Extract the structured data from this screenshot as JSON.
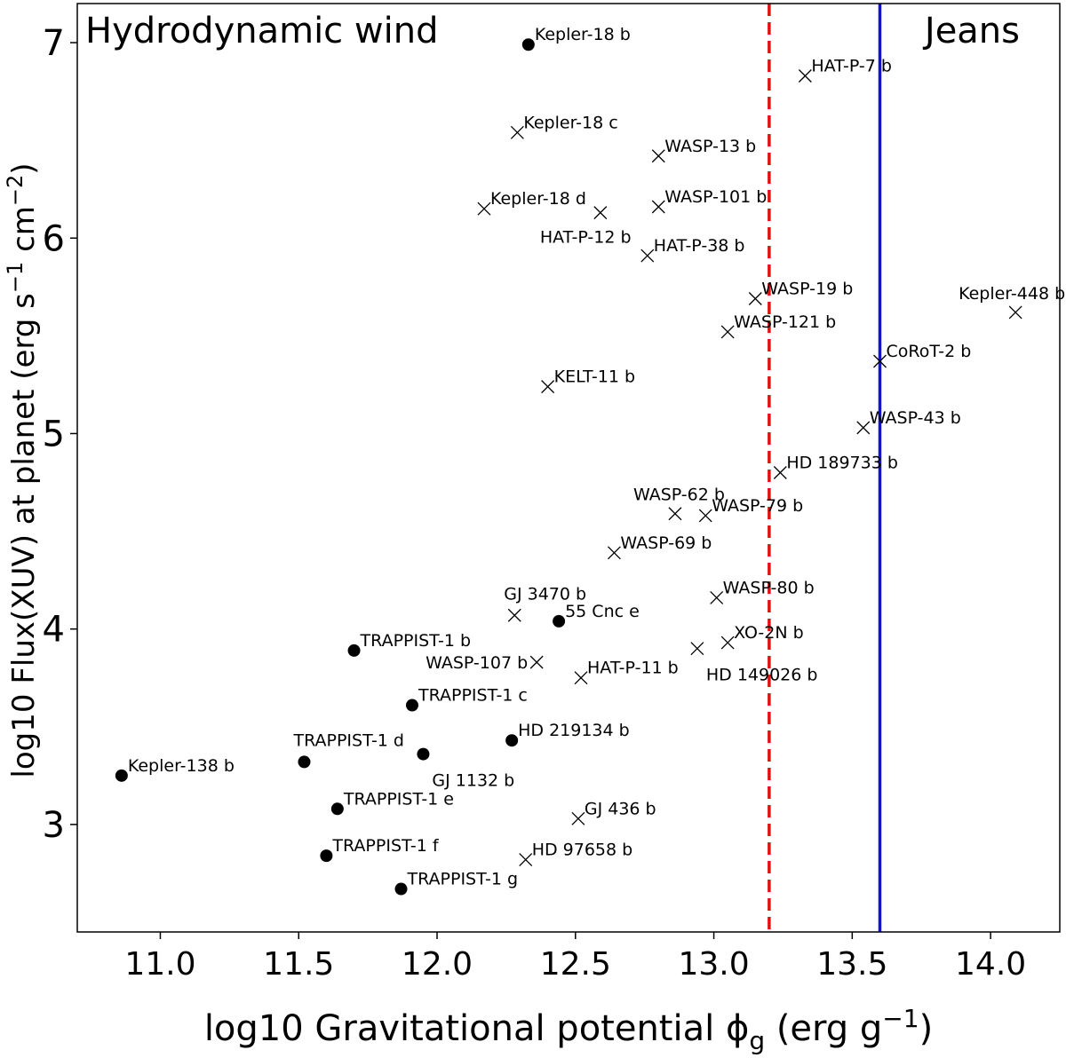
{
  "chart_data": {
    "type": "scatter",
    "xlabel": "log10 Gravitational potential ϕ",
    "xlabel_sub": "g",
    "xlabel_unit": " (erg g",
    "xlabel_sup": "−1",
    "xlabel_close": ")",
    "ylabel_main": "log10 Flux(XUV) at planet (erg s",
    "ylabel_sup1": "−1",
    "ylabel_mid": " cm",
    "ylabel_sup2": "−2",
    "ylabel_close": ")",
    "xlim": [
      10.7,
      14.25
    ],
    "ylim": [
      2.45,
      7.2
    ],
    "xticks": [
      "11.0",
      "11.5",
      "12.0",
      "12.5",
      "13.0",
      "13.5",
      "14.0"
    ],
    "yticks": [
      "3",
      "4",
      "5",
      "6",
      "7"
    ],
    "grid": false,
    "regions": {
      "left": "Hydrodynamic wind",
      "right": "Jeans"
    },
    "lines": [
      {
        "x": 13.2,
        "style": "dashed",
        "color": "#e01010"
      },
      {
        "x": 13.6,
        "style": "solid",
        "color": "#1010e0"
      }
    ],
    "points": [
      {
        "name": "Kepler-18 b",
        "x": 12.33,
        "y": 6.99,
        "marker": "dot",
        "label_pos": "right"
      },
      {
        "name": "HAT-P-7 b",
        "x": 13.33,
        "y": 6.83,
        "marker": "cross",
        "label_pos": "right"
      },
      {
        "name": "Kepler-18 c",
        "x": 12.29,
        "y": 6.54,
        "marker": "cross",
        "label_pos": "right"
      },
      {
        "name": "WASP-13 b",
        "x": 12.8,
        "y": 6.42,
        "marker": "cross",
        "label_pos": "right"
      },
      {
        "name": "Kepler-18 d",
        "x": 12.17,
        "y": 6.15,
        "marker": "cross",
        "label_pos": "right"
      },
      {
        "name": "WASP-101 b",
        "x": 12.8,
        "y": 6.16,
        "marker": "cross",
        "label_pos": "right"
      },
      {
        "name": "HAT-P-12 b",
        "x": 12.59,
        "y": 6.13,
        "marker": "cross",
        "label_pos": "below-left"
      },
      {
        "name": "HAT-P-38 b",
        "x": 12.76,
        "y": 5.91,
        "marker": "cross",
        "label_pos": "right"
      },
      {
        "name": "WASP-19 b",
        "x": 13.15,
        "y": 5.69,
        "marker": "cross",
        "label_pos": "right"
      },
      {
        "name": "Kepler-448 b",
        "x": 14.09,
        "y": 5.62,
        "marker": "cross",
        "label_pos": "above-left"
      },
      {
        "name": "WASP-121 b",
        "x": 13.05,
        "y": 5.52,
        "marker": "cross",
        "label_pos": "right"
      },
      {
        "name": "CoRoT-2 b",
        "x": 13.6,
        "y": 5.37,
        "marker": "cross",
        "label_pos": "right"
      },
      {
        "name": "KELT-11 b",
        "x": 12.4,
        "y": 5.24,
        "marker": "cross",
        "label_pos": "right"
      },
      {
        "name": "WASP-43 b",
        "x": 13.54,
        "y": 5.03,
        "marker": "cross",
        "label_pos": "right"
      },
      {
        "name": "HD 189733 b",
        "x": 13.24,
        "y": 4.8,
        "marker": "cross",
        "label_pos": "right"
      },
      {
        "name": "WASP-62 b",
        "x": 12.86,
        "y": 4.59,
        "marker": "cross",
        "label_pos": "above-left"
      },
      {
        "name": "WASP-79 b",
        "x": 12.97,
        "y": 4.58,
        "marker": "cross",
        "label_pos": "right"
      },
      {
        "name": "WASP-69 b",
        "x": 12.64,
        "y": 4.39,
        "marker": "cross",
        "label_pos": "right"
      },
      {
        "name": "WASP-80 b",
        "x": 13.01,
        "y": 4.16,
        "marker": "cross",
        "label_pos": "right"
      },
      {
        "name": "GJ 3470 b",
        "x": 12.28,
        "y": 4.07,
        "marker": "cross",
        "label_pos": "above"
      },
      {
        "name": "55 Cnc e",
        "x": 12.44,
        "y": 4.04,
        "marker": "dot",
        "label_pos": "right"
      },
      {
        "name": "XO-2N b",
        "x": 13.05,
        "y": 3.93,
        "marker": "cross",
        "label_pos": "right"
      },
      {
        "name": "TRAPPIST-1 b",
        "x": 11.7,
        "y": 3.89,
        "marker": "dot",
        "label_pos": "right"
      },
      {
        "name": "HD 149026 b",
        "x": 12.94,
        "y": 3.9,
        "marker": "cross",
        "label_pos": "below-right"
      },
      {
        "name": "WASP-107 b",
        "x": 12.36,
        "y": 3.83,
        "marker": "cross",
        "label_pos": "left"
      },
      {
        "name": "HAT-P-11 b",
        "x": 12.52,
        "y": 3.75,
        "marker": "cross",
        "label_pos": "right"
      },
      {
        "name": "TRAPPIST-1 c",
        "x": 11.91,
        "y": 3.61,
        "marker": "dot",
        "label_pos": "right"
      },
      {
        "name": "HD 219134 b",
        "x": 12.27,
        "y": 3.43,
        "marker": "dot",
        "label_pos": "right"
      },
      {
        "name": "GJ 1132 b",
        "x": 11.95,
        "y": 3.36,
        "marker": "dot",
        "label_pos": "below-right"
      },
      {
        "name": "TRAPPIST-1 d",
        "x": 11.52,
        "y": 3.32,
        "marker": "dot",
        "label_pos": "above"
      },
      {
        "name": "Kepler-138 b",
        "x": 10.86,
        "y": 3.25,
        "marker": "dot",
        "label_pos": "right"
      },
      {
        "name": "TRAPPIST-1 e",
        "x": 11.64,
        "y": 3.08,
        "marker": "dot",
        "label_pos": "right"
      },
      {
        "name": "GJ 436 b",
        "x": 12.51,
        "y": 3.03,
        "marker": "cross",
        "label_pos": "right"
      },
      {
        "name": "TRAPPIST-1 f",
        "x": 11.6,
        "y": 2.84,
        "marker": "dot",
        "label_pos": "right"
      },
      {
        "name": "HD 97658 b",
        "x": 12.32,
        "y": 2.82,
        "marker": "cross",
        "label_pos": "right"
      },
      {
        "name": "TRAPPIST-1 g",
        "x": 11.87,
        "y": 2.67,
        "marker": "dot",
        "label_pos": "right"
      }
    ]
  }
}
